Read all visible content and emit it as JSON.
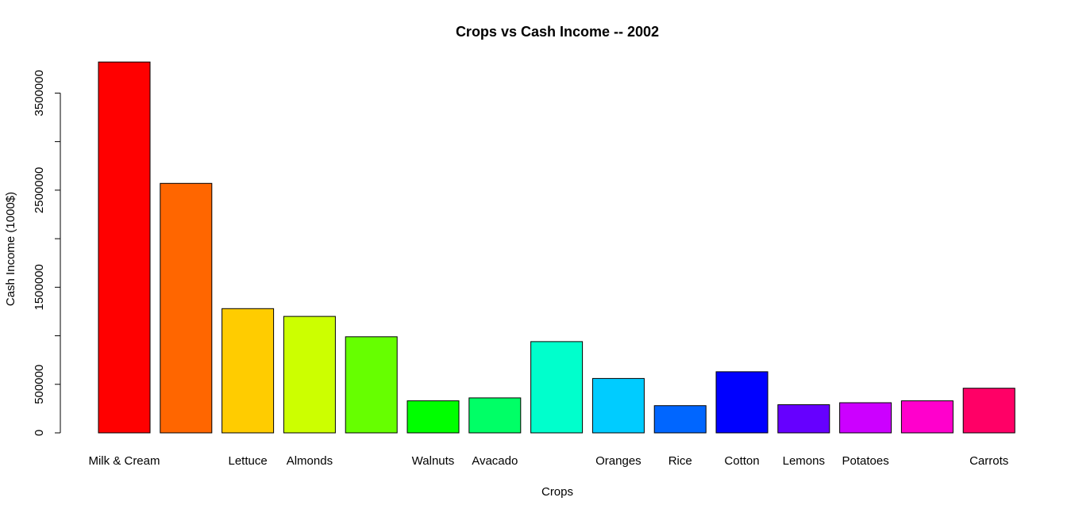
{
  "chart_data": {
    "type": "bar",
    "title": "Crops vs Cash Income -- 2002",
    "xlabel": "Crops",
    "ylabel": "Cash Income (1000$)",
    "ylim": [
      0,
      3830000
    ],
    "yticks": [
      0,
      500000,
      1000000,
      1500000,
      2000000,
      2500000,
      3000000,
      3500000
    ],
    "ytick_labels": [
      "0",
      "500000",
      "",
      "1500000",
      "",
      "2500000",
      "",
      "3500000"
    ],
    "categories": [
      "Milk & Cream",
      "",
      "Lettuce",
      "Almonds",
      "",
      "Walnuts",
      "Avacado",
      "",
      "Oranges",
      "Rice",
      "Cotton",
      "Lemons",
      "Potatoes",
      "",
      "Carrots"
    ],
    "values": [
      3820000,
      2570000,
      1280000,
      1200000,
      990000,
      330000,
      360000,
      940000,
      560000,
      280000,
      630000,
      290000,
      310000,
      330000,
      460000
    ],
    "colors": [
      "#FF0000",
      "#FF6600",
      "#FFCC00",
      "#CCFF00",
      "#66FF00",
      "#00FF00",
      "#00FF66",
      "#00FFCC",
      "#00CCFF",
      "#0066FF",
      "#0000FF",
      "#6600FF",
      "#CC00FF",
      "#FF00CC",
      "#FF0066"
    ],
    "grid": false,
    "legend": "none"
  }
}
